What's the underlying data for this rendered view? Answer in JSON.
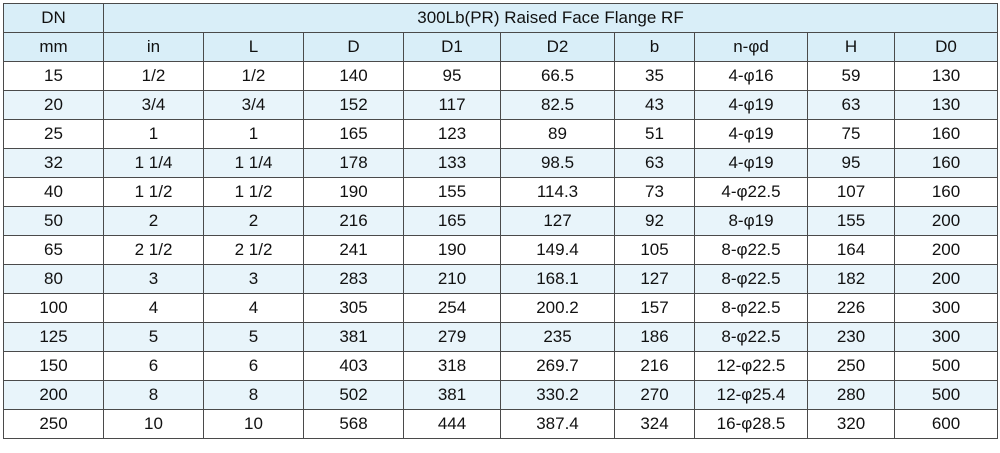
{
  "table": {
    "title": "300Lb(PR) Raised Face Flange RF",
    "dn_label": "DN",
    "columns": [
      "mm",
      "in",
      "L",
      "D",
      "D1",
      "D2",
      "b",
      "n-φd",
      "H",
      "D0"
    ],
    "rows": [
      [
        "15",
        "1/2",
        "1/2",
        "140",
        "95",
        "66.5",
        "35",
        "4-φ16",
        "59",
        "130"
      ],
      [
        "20",
        "3/4",
        "3/4",
        "152",
        "117",
        "82.5",
        "43",
        "4-φ19",
        "63",
        "130"
      ],
      [
        "25",
        "1",
        "1",
        "165",
        "123",
        "89",
        "51",
        "4-φ19",
        "75",
        "160"
      ],
      [
        "32",
        "1 1/4",
        "1 1/4",
        "178",
        "133",
        "98.5",
        "63",
        "4-φ19",
        "95",
        "160"
      ],
      [
        "40",
        "1 1/2",
        "1 1/2",
        "190",
        "155",
        "114.3",
        "73",
        "4-φ22.5",
        "107",
        "160"
      ],
      [
        "50",
        "2",
        "2",
        "216",
        "165",
        "127",
        "92",
        "8-φ19",
        "155",
        "200"
      ],
      [
        "65",
        "2 1/2",
        "2 1/2",
        "241",
        "190",
        "149.4",
        "105",
        "8-φ22.5",
        "164",
        "200"
      ],
      [
        "80",
        "3",
        "3",
        "283",
        "210",
        "168.1",
        "127",
        "8-φ22.5",
        "182",
        "200"
      ],
      [
        "100",
        "4",
        "4",
        "305",
        "254",
        "200.2",
        "157",
        "8-φ22.5",
        "226",
        "300"
      ],
      [
        "125",
        "5",
        "5",
        "381",
        "279",
        "235",
        "186",
        "8-φ22.5",
        "230",
        "300"
      ],
      [
        "150",
        "6",
        "6",
        "403",
        "318",
        "269.7",
        "216",
        "12-φ22.5",
        "250",
        "500"
      ],
      [
        "200",
        "8",
        "8",
        "502",
        "381",
        "330.2",
        "270",
        "12-φ25.4",
        "280",
        "500"
      ],
      [
        "250",
        "10",
        "10",
        "568",
        "444",
        "387.4",
        "324",
        "16-φ28.5",
        "320",
        "600"
      ]
    ]
  },
  "colors": {
    "header_bg": "#d9eef8",
    "band_bg": "#e8f4fa",
    "border": "#4a4a4a"
  }
}
